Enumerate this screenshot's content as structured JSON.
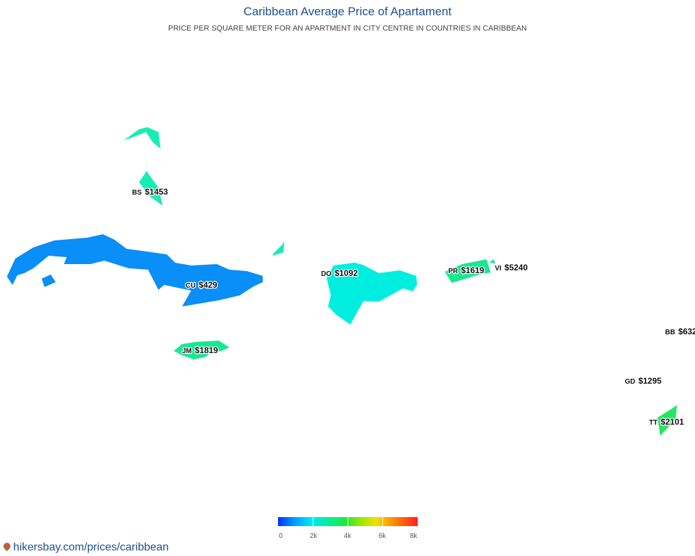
{
  "title": "Caribbean Average Price of Apartament",
  "subtitle": "PRICE PER SQUARE METER FOR AN APARTMENT IN CITY CENTRE IN COUNTRIES IN CARIBBEAN",
  "colors": {
    "title": "#1f4e8c",
    "link": "#1f4e8c"
  },
  "countries": [
    {
      "code": "BS",
      "price": "$1453",
      "color": "#18ecb4"
    },
    {
      "code": "CU",
      "price": "$429",
      "color": "#0a8ef8"
    },
    {
      "code": "DO",
      "price": "$1092",
      "color": "#00eee0"
    },
    {
      "code": "PR",
      "price": "$1619",
      "color": "#18e890"
    },
    {
      "code": "VI",
      "price": "$5240",
      "color": "#c8e800"
    },
    {
      "code": "JM",
      "price": "$1819",
      "color": "#18e890"
    },
    {
      "code": "BB",
      "price": "$632",
      "color": "#00c8f8"
    },
    {
      "code": "GD",
      "price": "$1295",
      "color": "#10eec8"
    },
    {
      "code": "TT",
      "price": "$2101",
      "color": "#20e860"
    }
  ],
  "legend": {
    "ticks": [
      "0",
      "2k",
      "4k",
      "6k",
      "8k"
    ],
    "min": 0,
    "max": 8000
  },
  "footer": {
    "link": "hikersbay.com/prices/caribbean",
    "icon": "location-pin-icon"
  }
}
